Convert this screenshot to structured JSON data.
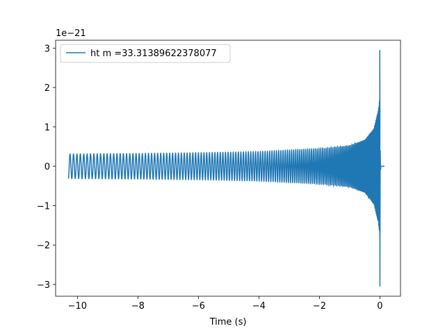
{
  "chart_data": {
    "type": "line",
    "title": "",
    "xlabel": "Time (s)",
    "ylabel": "",
    "offset_label": "1e−21",
    "xlim": [
      -10.72,
      0.68
    ],
    "ylim": [
      -3.3,
      3.2
    ],
    "x_ticks": [
      -10,
      -8,
      -6,
      -4,
      -2,
      0
    ],
    "x_tick_labels": [
      "−10",
      "−8",
      "−6",
      "−4",
      "−2",
      "0"
    ],
    "y_ticks": [
      -3,
      -2,
      -1,
      0,
      1,
      2,
      3
    ],
    "y_tick_labels": [
      "−3",
      "−2",
      "−1",
      "0",
      "1",
      "2",
      "3"
    ],
    "grid": false,
    "legend_position": "upper-left",
    "series": [
      {
        "name": "ht m =33.31389622378077",
        "color": "#1f77b4",
        "x_start": -10.3,
        "x_merger": 0.0,
        "x_end": 0.15,
        "envelope_x": [
          -10.3,
          -8.0,
          -6.0,
          -4.0,
          -2.0,
          -1.0,
          -0.5,
          -0.2,
          -0.05,
          0.0
        ],
        "envelope_y": [
          0.52,
          0.54,
          0.57,
          0.62,
          0.74,
          0.88,
          1.12,
          1.6,
          2.4,
          2.95
        ],
        "min_at_merger": -3.05
      }
    ]
  }
}
